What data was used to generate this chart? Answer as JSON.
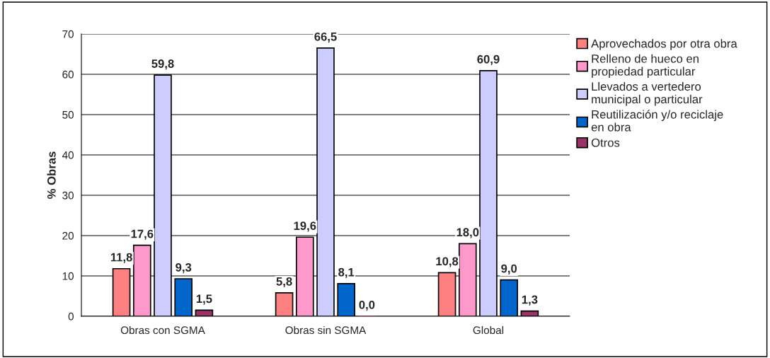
{
  "chart_data": {
    "type": "bar",
    "ylabel": "% Obras",
    "categories": [
      "Obras con SGMA",
      "Obras sin SGMA",
      "Global"
    ],
    "series": [
      {
        "name": "Aprovechados por otra obra",
        "color": "#ff8080",
        "values": [
          11.8,
          5.8,
          10.8
        ],
        "value_labels": [
          "11,8",
          "5,8",
          "10,8"
        ]
      },
      {
        "name": "Relleno de hueco en\npropiedad particular",
        "color": "#ff99cc",
        "values": [
          17.6,
          19.6,
          18.0
        ],
        "value_labels": [
          "17,6",
          "19,6",
          "18,0"
        ]
      },
      {
        "name": "Llevados a vertedero\nmunicipal o particular",
        "color": "#ccccff",
        "values": [
          59.8,
          66.5,
          60.9
        ],
        "value_labels": [
          "59,8",
          "66,5",
          "60,9"
        ]
      },
      {
        "name": "Reutilización y/o reciclaje\nen obra",
        "color": "#0066cc",
        "values": [
          9.3,
          8.1,
          9.0
        ],
        "value_labels": [
          "9,3",
          "8,1",
          "9,0"
        ]
      },
      {
        "name": "Otros",
        "color": "#993366",
        "values": [
          1.5,
          0.0,
          1.3
        ],
        "value_labels": [
          "1,5",
          "0,0",
          "1,3"
        ]
      }
    ],
    "ylim": [
      0,
      70
    ],
    "yticks": [
      0,
      10,
      20,
      30,
      40,
      50,
      60,
      70
    ],
    "grid": "y",
    "legend": "right"
  }
}
